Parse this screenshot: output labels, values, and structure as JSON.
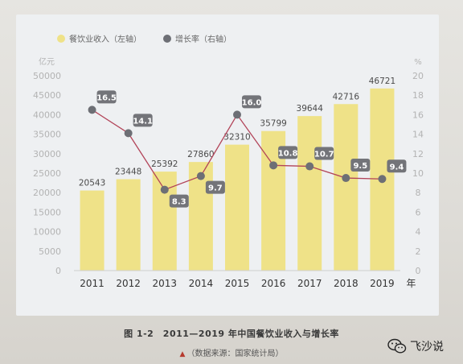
{
  "chart_data": {
    "type": "bar+line",
    "categories": [
      "2011",
      "2012",
      "2013",
      "2014",
      "2015",
      "2016",
      "2017",
      "2018",
      "2019"
    ],
    "series": [
      {
        "name": "餐饮业收入（左轴）",
        "type": "bar",
        "axis": "left",
        "values": [
          20543,
          23448,
          25392,
          27860,
          32310,
          35799,
          39644,
          42716,
          46721
        ]
      },
      {
        "name": "增长率（右轴）",
        "type": "line",
        "axis": "right",
        "values": [
          16.5,
          14.1,
          8.3,
          9.7,
          16.0,
          10.8,
          10.7,
          9.5,
          9.4
        ]
      }
    ],
    "bar_labels": [
      "20543",
      "23448",
      "25392",
      "27860",
      "32310",
      "35799",
      "39644",
      "42716",
      "46721"
    ],
    "line_labels": [
      "16.5",
      "14.1",
      "8.3",
      "9.7",
      "16.0",
      "10.8",
      "10.7",
      "9.5",
      "9.4"
    ],
    "label_above": [
      true,
      true,
      false,
      false,
      true,
      true,
      true,
      true,
      true
    ],
    "left_axis": {
      "unit": "亿元",
      "ylim": [
        0,
        50000
      ],
      "ticks": [
        0,
        5000,
        10000,
        15000,
        20000,
        25000,
        30000,
        35000,
        40000,
        45000,
        50000
      ]
    },
    "right_axis": {
      "unit": "%",
      "ylim": [
        0,
        20
      ],
      "ticks": [
        0,
        2,
        4,
        6,
        8,
        10,
        12,
        14,
        16,
        18,
        20
      ]
    },
    "x_unit": "年",
    "legend_position": "top-left",
    "colors": {
      "bar": "#efe288",
      "line": "#b24459",
      "marker": "#6d6f75",
      "label_bg": "#737479",
      "label_text": "#ffffff",
      "tick": "#b3b3b3"
    }
  },
  "caption": {
    "title": "图 1-2　2011—2019 年中国餐饮业收入与增长率",
    "source_marker": "▲",
    "source": "（数据来源：国家统计局）"
  },
  "watermark": {
    "text": "飞沙说"
  }
}
